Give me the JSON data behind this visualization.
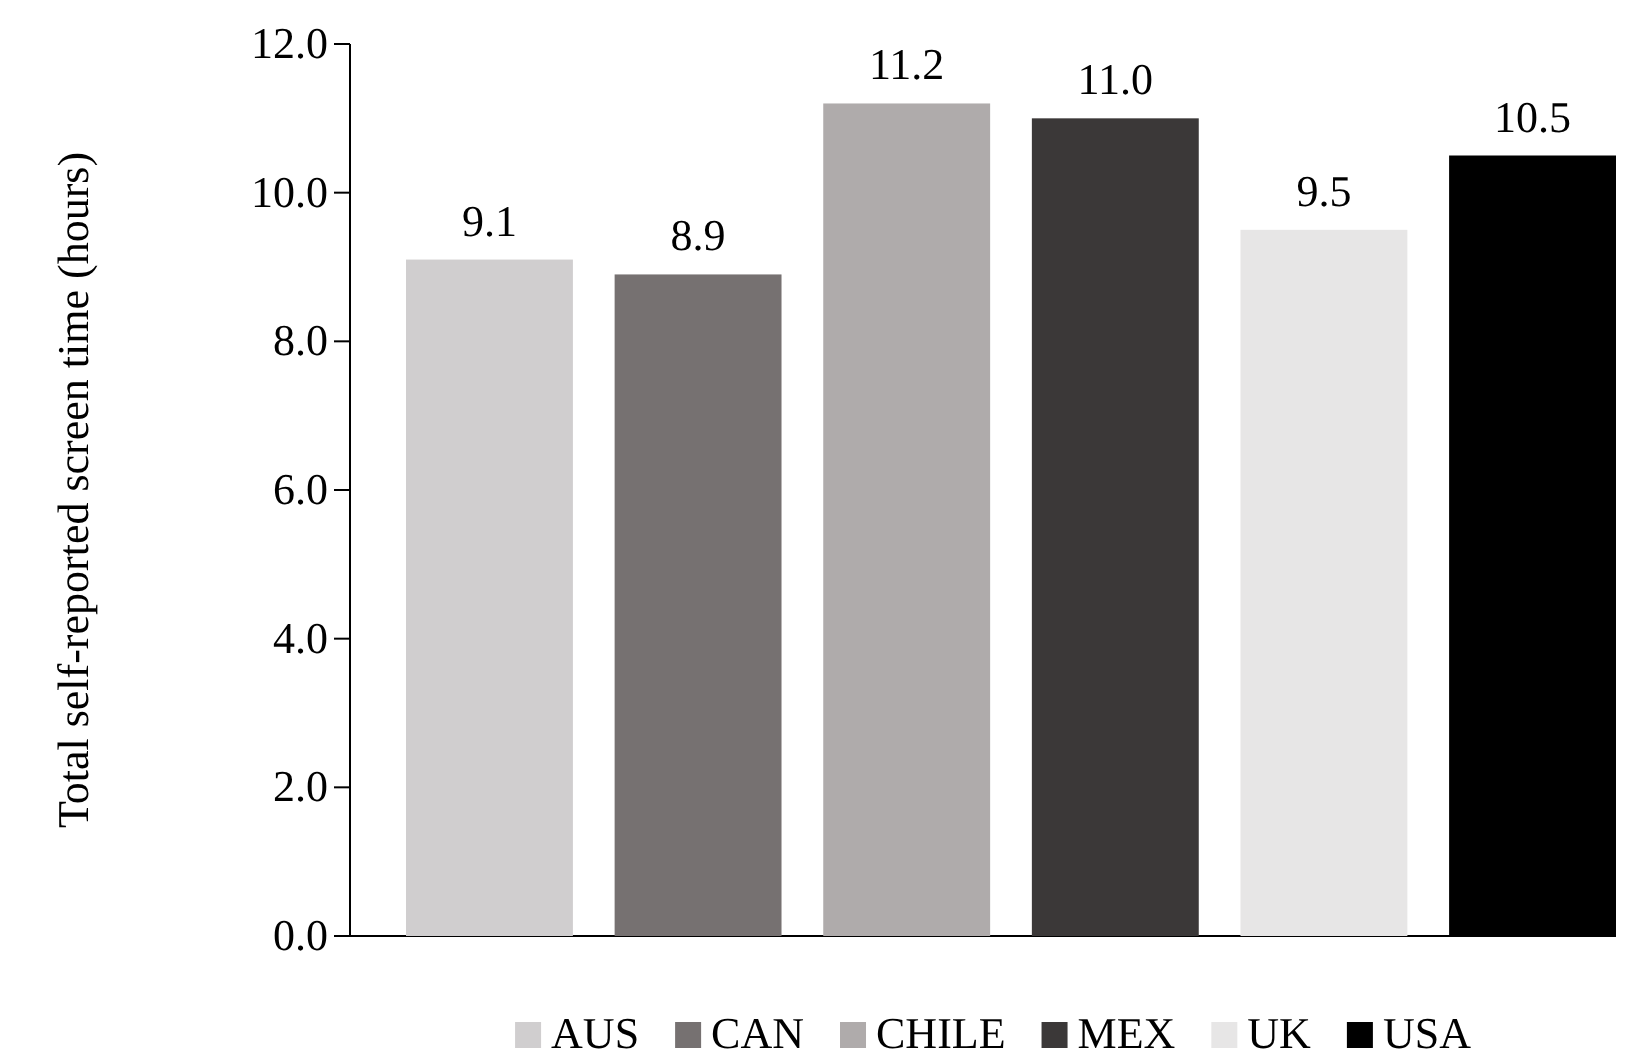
{
  "chart_data": {
    "type": "bar",
    "ylabel": "Total self-reported screen time (hours)",
    "categories": [
      null
    ],
    "series": [
      {
        "name": "AUS",
        "color": "#d0cecf",
        "values": [
          9.1
        ],
        "value_labels": [
          "9.1"
        ]
      },
      {
        "name": "CAN",
        "color": "#767171",
        "values": [
          8.9
        ],
        "value_labels": [
          "8.9"
        ]
      },
      {
        "name": "CHILE",
        "color": "#afabab",
        "values": [
          11.2
        ],
        "value_labels": [
          "11.2"
        ]
      },
      {
        "name": "MEX",
        "color": "#3b3838",
        "values": [
          11.0
        ],
        "value_labels": [
          "11.0"
        ]
      },
      {
        "name": "UK",
        "color": "#e7e6e6",
        "values": [
          9.5
        ],
        "value_labels": [
          "9.5"
        ]
      },
      {
        "name": "USA",
        "color": "#000000",
        "values": [
          10.5
        ],
        "value_labels": [
          "10.5"
        ]
      }
    ],
    "ylim": [
      0,
      12
    ],
    "yticks": [
      {
        "value": 0,
        "label": "0.0"
      },
      {
        "value": 2,
        "label": "2.0"
      },
      {
        "value": 4,
        "label": "4.0"
      },
      {
        "value": 6,
        "label": "6.0"
      },
      {
        "value": 8,
        "label": "8.0"
      },
      {
        "value": 10,
        "label": "10.0"
      },
      {
        "value": 12,
        "label": "12.0"
      }
    ],
    "grid": false,
    "legend": "bottom"
  }
}
